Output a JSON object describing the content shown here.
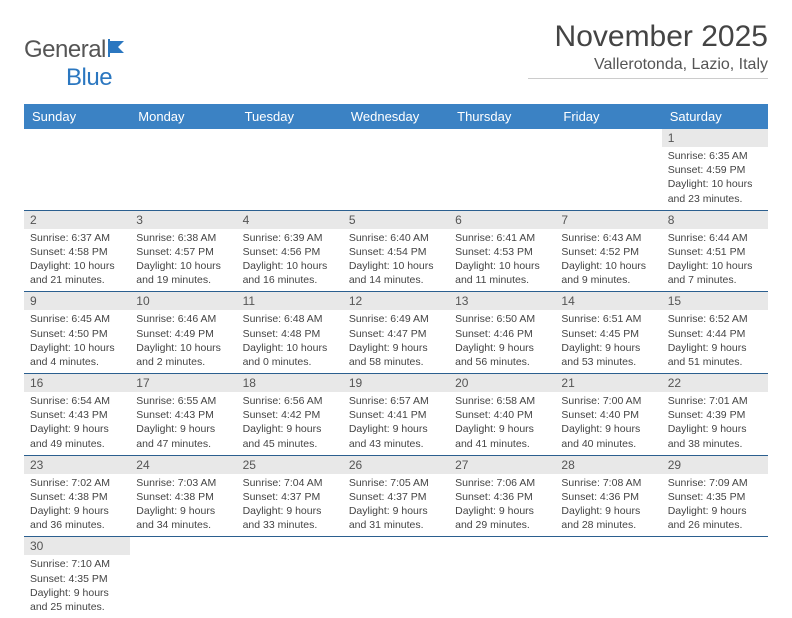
{
  "brand": {
    "name_gray": "General",
    "name_blue": "Blue"
  },
  "title": "November 2025",
  "location": "Vallerotonda, Lazio, Italy",
  "colors": {
    "header_bg": "#3b82c4",
    "header_text": "#ffffff",
    "daynum_bg": "#e8e8e8",
    "row_border": "#2b5f8f",
    "text": "#444444",
    "brand_blue": "#2b77c0"
  },
  "weekdays": [
    "Sunday",
    "Monday",
    "Tuesday",
    "Wednesday",
    "Thursday",
    "Friday",
    "Saturday"
  ],
  "weeks": [
    [
      null,
      null,
      null,
      null,
      null,
      null,
      {
        "n": "1",
        "sr": "6:35 AM",
        "ss": "4:59 PM",
        "dl": "10 hours and 23 minutes."
      }
    ],
    [
      {
        "n": "2",
        "sr": "6:37 AM",
        "ss": "4:58 PM",
        "dl": "10 hours and 21 minutes."
      },
      {
        "n": "3",
        "sr": "6:38 AM",
        "ss": "4:57 PM",
        "dl": "10 hours and 19 minutes."
      },
      {
        "n": "4",
        "sr": "6:39 AM",
        "ss": "4:56 PM",
        "dl": "10 hours and 16 minutes."
      },
      {
        "n": "5",
        "sr": "6:40 AM",
        "ss": "4:54 PM",
        "dl": "10 hours and 14 minutes."
      },
      {
        "n": "6",
        "sr": "6:41 AM",
        "ss": "4:53 PM",
        "dl": "10 hours and 11 minutes."
      },
      {
        "n": "7",
        "sr": "6:43 AM",
        "ss": "4:52 PM",
        "dl": "10 hours and 9 minutes."
      },
      {
        "n": "8",
        "sr": "6:44 AM",
        "ss": "4:51 PM",
        "dl": "10 hours and 7 minutes."
      }
    ],
    [
      {
        "n": "9",
        "sr": "6:45 AM",
        "ss": "4:50 PM",
        "dl": "10 hours and 4 minutes."
      },
      {
        "n": "10",
        "sr": "6:46 AM",
        "ss": "4:49 PM",
        "dl": "10 hours and 2 minutes."
      },
      {
        "n": "11",
        "sr": "6:48 AM",
        "ss": "4:48 PM",
        "dl": "10 hours and 0 minutes."
      },
      {
        "n": "12",
        "sr": "6:49 AM",
        "ss": "4:47 PM",
        "dl": "9 hours and 58 minutes."
      },
      {
        "n": "13",
        "sr": "6:50 AM",
        "ss": "4:46 PM",
        "dl": "9 hours and 56 minutes."
      },
      {
        "n": "14",
        "sr": "6:51 AM",
        "ss": "4:45 PM",
        "dl": "9 hours and 53 minutes."
      },
      {
        "n": "15",
        "sr": "6:52 AM",
        "ss": "4:44 PM",
        "dl": "9 hours and 51 minutes."
      }
    ],
    [
      {
        "n": "16",
        "sr": "6:54 AM",
        "ss": "4:43 PM",
        "dl": "9 hours and 49 minutes."
      },
      {
        "n": "17",
        "sr": "6:55 AM",
        "ss": "4:43 PM",
        "dl": "9 hours and 47 minutes."
      },
      {
        "n": "18",
        "sr": "6:56 AM",
        "ss": "4:42 PM",
        "dl": "9 hours and 45 minutes."
      },
      {
        "n": "19",
        "sr": "6:57 AM",
        "ss": "4:41 PM",
        "dl": "9 hours and 43 minutes."
      },
      {
        "n": "20",
        "sr": "6:58 AM",
        "ss": "4:40 PM",
        "dl": "9 hours and 41 minutes."
      },
      {
        "n": "21",
        "sr": "7:00 AM",
        "ss": "4:40 PM",
        "dl": "9 hours and 40 minutes."
      },
      {
        "n": "22",
        "sr": "7:01 AM",
        "ss": "4:39 PM",
        "dl": "9 hours and 38 minutes."
      }
    ],
    [
      {
        "n": "23",
        "sr": "7:02 AM",
        "ss": "4:38 PM",
        "dl": "9 hours and 36 minutes."
      },
      {
        "n": "24",
        "sr": "7:03 AM",
        "ss": "4:38 PM",
        "dl": "9 hours and 34 minutes."
      },
      {
        "n": "25",
        "sr": "7:04 AM",
        "ss": "4:37 PM",
        "dl": "9 hours and 33 minutes."
      },
      {
        "n": "26",
        "sr": "7:05 AM",
        "ss": "4:37 PM",
        "dl": "9 hours and 31 minutes."
      },
      {
        "n": "27",
        "sr": "7:06 AM",
        "ss": "4:36 PM",
        "dl": "9 hours and 29 minutes."
      },
      {
        "n": "28",
        "sr": "7:08 AM",
        "ss": "4:36 PM",
        "dl": "9 hours and 28 minutes."
      },
      {
        "n": "29",
        "sr": "7:09 AM",
        "ss": "4:35 PM",
        "dl": "9 hours and 26 minutes."
      }
    ],
    [
      {
        "n": "30",
        "sr": "7:10 AM",
        "ss": "4:35 PM",
        "dl": "9 hours and 25 minutes."
      },
      null,
      null,
      null,
      null,
      null,
      null
    ]
  ],
  "labels": {
    "sunrise": "Sunrise:",
    "sunset": "Sunset:",
    "daylight": "Daylight:"
  }
}
